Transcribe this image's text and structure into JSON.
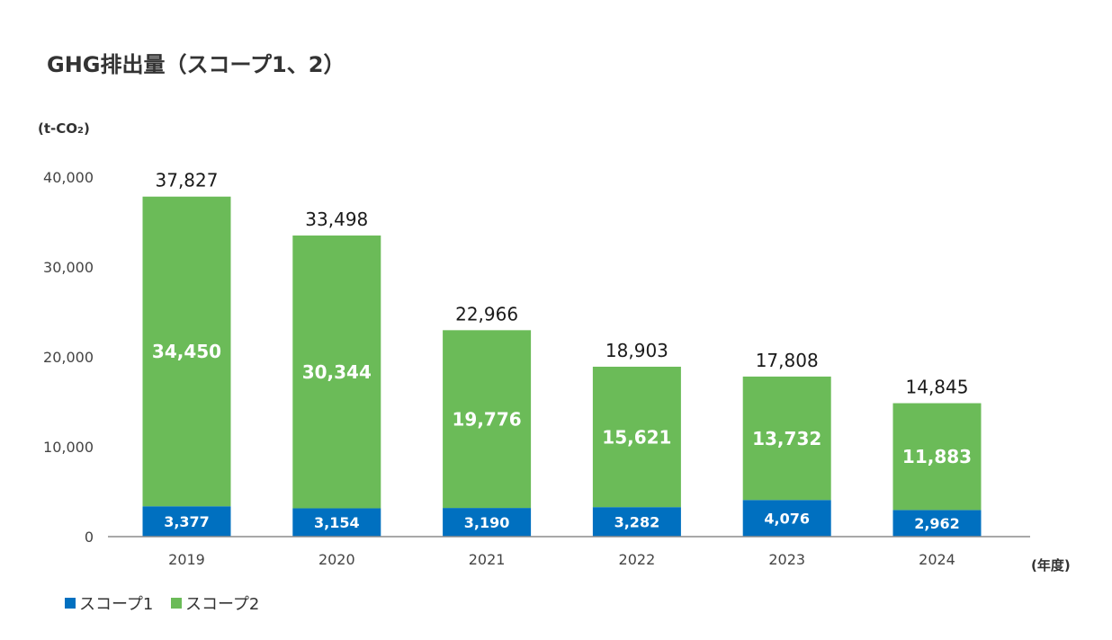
{
  "title": "GHG排出量（スコープ1、2）",
  "chart_data": {
    "type": "bar",
    "stacked": true,
    "categories": [
      "2019",
      "2020",
      "2021",
      "2022",
      "2023",
      "2024"
    ],
    "series": [
      {
        "name": "スコープ1",
        "color": "#0070C0",
        "values": [
          3377,
          3154,
          3190,
          3282,
          4076,
          2962
        ],
        "labels": [
          "3,377",
          "3,154",
          "3,190",
          "3,282",
          "4,076",
          "2,962"
        ]
      },
      {
        "name": "スコープ2",
        "color": "#6BBB58",
        "values": [
          34450,
          30344,
          19776,
          15621,
          13732,
          11883
        ],
        "labels": [
          "34,450",
          "30,344",
          "19,776",
          "15,621",
          "13,732",
          "11,883"
        ]
      }
    ],
    "totals": [
      37827,
      33498,
      22966,
      18903,
      17808,
      14845
    ],
    "total_labels": [
      "37,827",
      "33,498",
      "22,966",
      "18,903",
      "17,808",
      "14,845"
    ],
    "ylabel": "(t-CO2)",
    "xlabel": "(年度)",
    "ylim": [
      0,
      40000
    ],
    "yticks": [
      0,
      10000,
      20000,
      30000,
      40000
    ],
    "ytick_labels": [
      "0",
      "10,000",
      "20,000",
      "30,000",
      "40,000"
    ],
    "grid": false,
    "legend_position": "bottom-left"
  }
}
